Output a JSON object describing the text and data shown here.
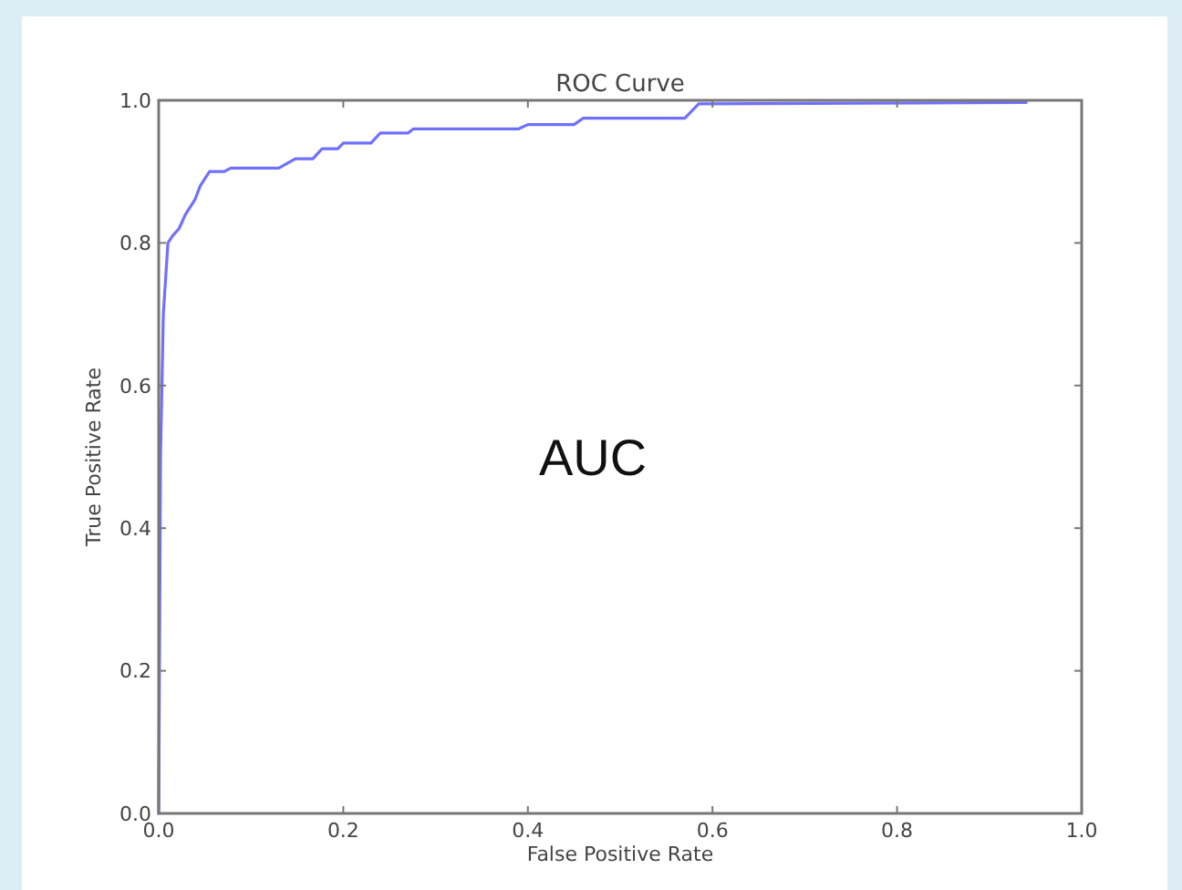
{
  "chart_data": {
    "type": "line",
    "title": "ROC Curve",
    "xlabel": "False Positive Rate",
    "ylabel": "True Positive Rate",
    "annotations": [
      "AUC"
    ],
    "xlim": [
      0,
      1
    ],
    "ylim": [
      0,
      1
    ],
    "xticks": [
      {
        "value": 0,
        "label": "0.0"
      },
      0.2,
      0.4,
      0.6,
      0.8,
      {
        "value": 1,
        "label": "1.0"
      }
    ],
    "yticks": [
      {
        "value": 0,
        "label": "0.0"
      },
      0.2,
      0.4,
      0.6,
      0.8,
      {
        "value": 1,
        "label": "1.0"
      }
    ],
    "grid": false,
    "line_style": "solid",
    "marker": "none",
    "series": [
      {
        "color": "#7070ff",
        "x": [
          0,
          0.002,
          0.005,
          0.01,
          0.015,
          0.022,
          0.029,
          0.039,
          0.045,
          0.055,
          0.071,
          0.078,
          0.13,
          0.148,
          0.167,
          0.177,
          0.194,
          0.2,
          0.23,
          0.24,
          0.27,
          0.276,
          0.39,
          0.4,
          0.45,
          0.46,
          0.57,
          0.585,
          0.94
        ],
        "values": [
          0,
          0.5,
          0.7,
          0.8,
          0.81,
          0.82,
          0.84,
          0.86,
          0.88,
          0.9,
          0.9,
          0.905,
          0.905,
          0.918,
          0.918,
          0.932,
          0.932,
          0.94,
          0.94,
          0.954,
          0.954,
          0.96,
          0.96,
          0.966,
          0.966,
          0.975,
          0.975,
          0.995,
          0.997
        ]
      }
    ]
  }
}
